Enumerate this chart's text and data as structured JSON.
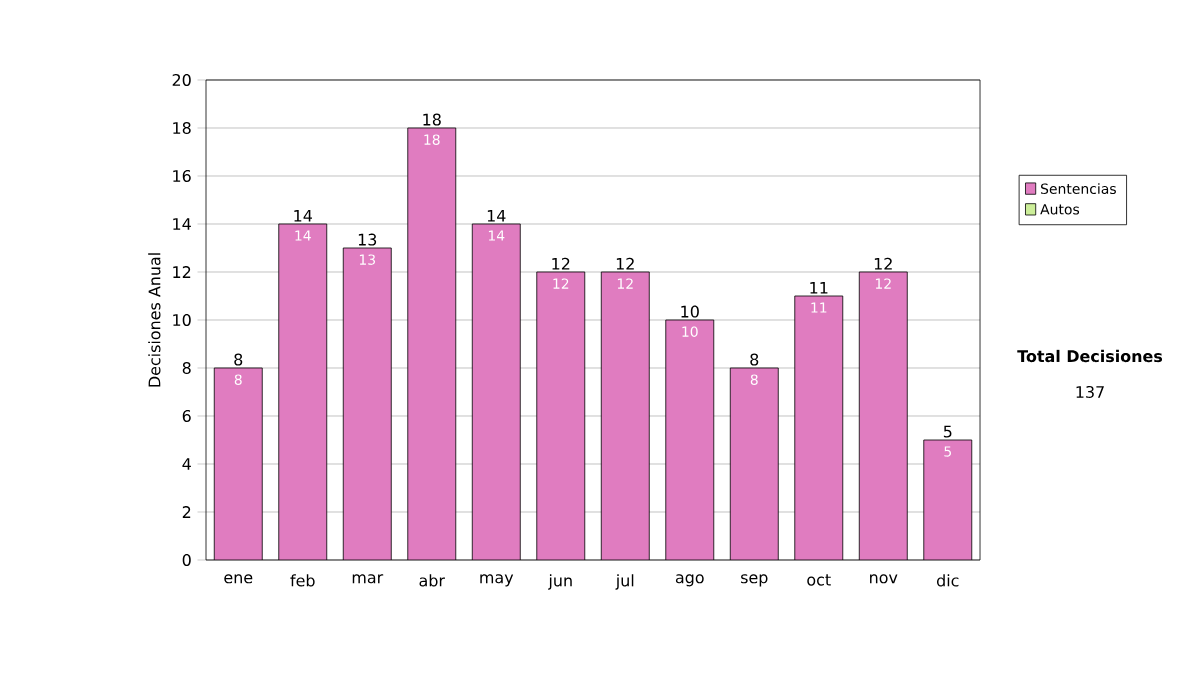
{
  "chart_data": {
    "type": "bar",
    "ylabel": "Decisiones Anual",
    "categories": [
      "ene",
      "feb",
      "mar",
      "abr",
      "may",
      "jun",
      "jul",
      "ago",
      "sep",
      "oct",
      "nov",
      "dic"
    ],
    "series": [
      {
        "name": "Sentencias",
        "color": "#e07cc0",
        "values": [
          8,
          14,
          13,
          18,
          14,
          12,
          12,
          10,
          8,
          11,
          12,
          5
        ],
        "value_labels": [
          "8",
          "14",
          "13",
          "18",
          "14",
          "12",
          "12",
          "10",
          "8",
          "11",
          "12",
          "5"
        ]
      },
      {
        "name": "Autos",
        "color": "#ccee99",
        "values": [
          0,
          0,
          0,
          0,
          0,
          0,
          0,
          0,
          0,
          0,
          0,
          0
        ]
      }
    ],
    "stacked": true,
    "totals": [
      "8",
      "14",
      "13",
      "18",
      "14",
      "12",
      "12",
      "10",
      "8",
      "11",
      "12",
      "5"
    ],
    "ylim": [
      0,
      20
    ],
    "yticks": [
      0,
      2,
      4,
      6,
      8,
      10,
      12,
      14,
      16,
      18,
      20
    ],
    "grid": "y",
    "legend": "right",
    "annotations": [
      "Total Decisiones",
      "137"
    ]
  }
}
